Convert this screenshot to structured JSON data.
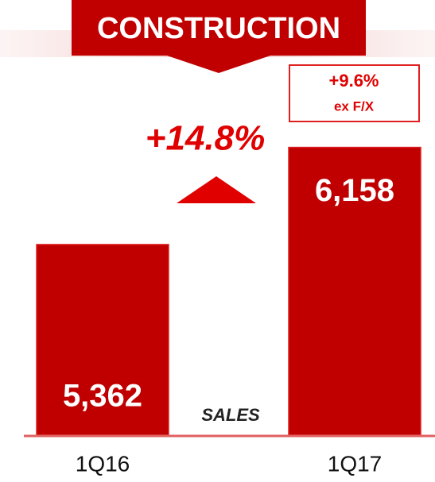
{
  "chart_data": {
    "type": "bar",
    "title": "CONSTRUCTION",
    "categories": [
      "1Q16",
      "1Q17"
    ],
    "values": [
      5362,
      6158
    ],
    "value_labels": [
      "5,362",
      "6,158"
    ],
    "color": "#c00000",
    "ylim": [
      3800,
      6500
    ],
    "label": "SALES",
    "annotations": {
      "growth": "+14.8%",
      "ex_fx_value": "+9.6%",
      "ex_fx_label": "ex F/X"
    }
  }
}
